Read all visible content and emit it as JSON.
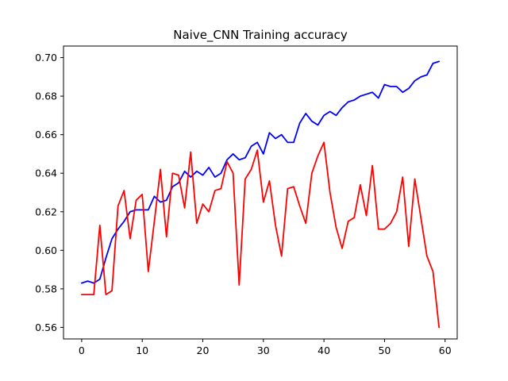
{
  "chart_data": {
    "type": "line",
    "title": "Naive_CNN Training accuracy",
    "xlabel": "",
    "ylabel": "",
    "xlim": [
      -3,
      62
    ],
    "ylim": [
      0.554,
      0.706
    ],
    "xticks": [
      0,
      10,
      20,
      30,
      40,
      50,
      60
    ],
    "xtick_labels": [
      "0",
      "10",
      "20",
      "30",
      "40",
      "50",
      "60"
    ],
    "yticks": [
      0.56,
      0.58,
      0.6,
      0.62,
      0.64,
      0.66,
      0.68,
      0.7
    ],
    "ytick_labels": [
      "0.56",
      "0.58",
      "0.60",
      "0.62",
      "0.64",
      "0.66",
      "0.68",
      "0.70"
    ],
    "grid": false,
    "legend": "none",
    "x": [
      0,
      1,
      2,
      3,
      4,
      5,
      6,
      7,
      8,
      9,
      10,
      11,
      12,
      13,
      14,
      15,
      16,
      17,
      18,
      19,
      20,
      21,
      22,
      23,
      24,
      25,
      26,
      27,
      28,
      29,
      30,
      31,
      32,
      33,
      34,
      35,
      36,
      37,
      38,
      39,
      40,
      41,
      42,
      43,
      44,
      45,
      46,
      47,
      48,
      49,
      50,
      51,
      52,
      53,
      54,
      55,
      56,
      57,
      58,
      59
    ],
    "series": [
      {
        "color": "#0000ff",
        "values": [
          0.583,
          0.584,
          0.583,
          0.585,
          0.596,
          0.606,
          0.611,
          0.615,
          0.62,
          0.621,
          0.621,
          0.621,
          0.628,
          0.625,
          0.626,
          0.633,
          0.635,
          0.641,
          0.638,
          0.641,
          0.639,
          0.643,
          0.638,
          0.64,
          0.647,
          0.65,
          0.647,
          0.648,
          0.654,
          0.656,
          0.65,
          0.661,
          0.658,
          0.66,
          0.656,
          0.656,
          0.666,
          0.671,
          0.667,
          0.665,
          0.67,
          0.672,
          0.67,
          0.674,
          0.677,
          0.678,
          0.68,
          0.681,
          0.682,
          0.679,
          0.686,
          0.685,
          0.685,
          0.682,
          0.684,
          0.688,
          0.69,
          0.691,
          0.697,
          0.698
        ]
      },
      {
        "color": "#ff0000",
        "values": [
          0.577,
          0.577,
          0.577,
          0.613,
          0.577,
          0.579,
          0.623,
          0.631,
          0.606,
          0.626,
          0.629,
          0.589,
          0.615,
          0.642,
          0.607,
          0.64,
          0.639,
          0.622,
          0.651,
          0.614,
          0.624,
          0.62,
          0.631,
          0.632,
          0.646,
          0.64,
          0.582,
          0.637,
          0.642,
          0.652,
          0.625,
          0.636,
          0.613,
          0.597,
          0.632,
          0.633,
          0.623,
          0.614,
          0.64,
          0.649,
          0.656,
          0.63,
          0.612,
          0.601,
          0.615,
          0.617,
          0.634,
          0.618,
          0.644,
          0.611,
          0.611,
          0.614,
          0.62,
          0.638,
          0.602,
          0.637,
          0.617,
          0.597,
          0.589,
          0.56
        ]
      }
    ]
  }
}
